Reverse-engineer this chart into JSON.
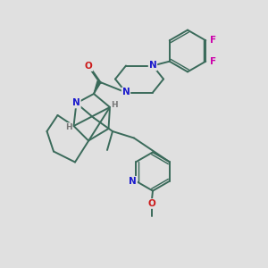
{
  "background_color": "#e0e0e0",
  "bond_color": "#3a6a5a",
  "bond_width": 1.4,
  "N_color": "#1a1acc",
  "O_color": "#cc1a1a",
  "F_color": "#cc00aa",
  "H_color": "#777777",
  "figsize": [
    3.0,
    3.0
  ],
  "dpi": 100,
  "xlim": [
    0,
    10
  ],
  "ylim": [
    0,
    10
  ]
}
